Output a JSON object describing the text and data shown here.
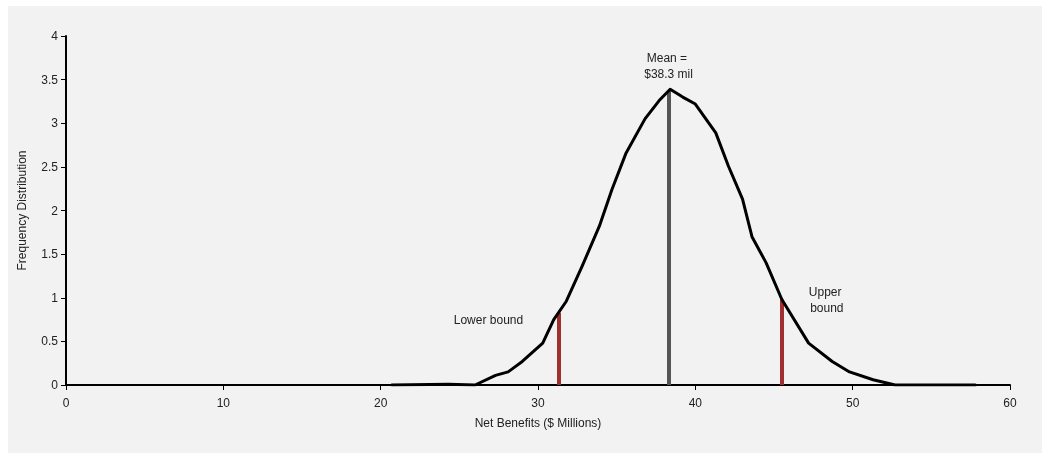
{
  "chart_data": {
    "type": "line",
    "xlabel": "Net Benefits ($ Millions)",
    "ylabel": "Frequency Distribution",
    "xlim": [
      0,
      60
    ],
    "xticks": [
      0,
      10,
      20,
      30,
      40,
      50,
      60
    ],
    "ylim": [
      0,
      4
    ],
    "yticks": [
      0,
      0.5,
      1,
      1.5,
      2,
      2.5,
      3,
      3.5,
      4
    ],
    "grid": false,
    "marker": "none",
    "line_style": "solid",
    "series": [
      {
        "color": "#000000",
        "x": [
          20.7,
          24.3,
          26.0,
          27.3,
          28.1,
          29.0,
          30.3,
          31.0,
          31.8,
          32.8,
          33.9,
          34.7,
          35.6,
          36.8,
          37.7,
          38.4,
          39.2,
          40.0,
          41.3,
          42.1,
          43.0,
          43.6,
          44.5,
          45.5,
          47.2,
          48.7,
          49.8,
          51.3,
          52.7,
          57.8
        ],
        "values": [
          0,
          0.01,
          0,
          0.11,
          0.15,
          0.27,
          0.48,
          0.75,
          0.96,
          1.36,
          1.82,
          2.24,
          2.66,
          3.05,
          3.26,
          3.39,
          3.3,
          3.22,
          2.89,
          2.51,
          2.13,
          1.7,
          1.4,
          0.98,
          0.48,
          0.27,
          0.15,
          0.06,
          0,
          0
        ]
      }
    ],
    "ref_lines": [
      {
        "axis": "x",
        "value": 31.3,
        "label": "Lower bound",
        "color": "#a03030"
      },
      {
        "axis": "x",
        "value": 38.3,
        "label": "Mean = $38.3 mil",
        "color": "#555555"
      },
      {
        "axis": "x",
        "value": 45.5,
        "label": "Upper bound",
        "color": "#a03030"
      }
    ]
  }
}
